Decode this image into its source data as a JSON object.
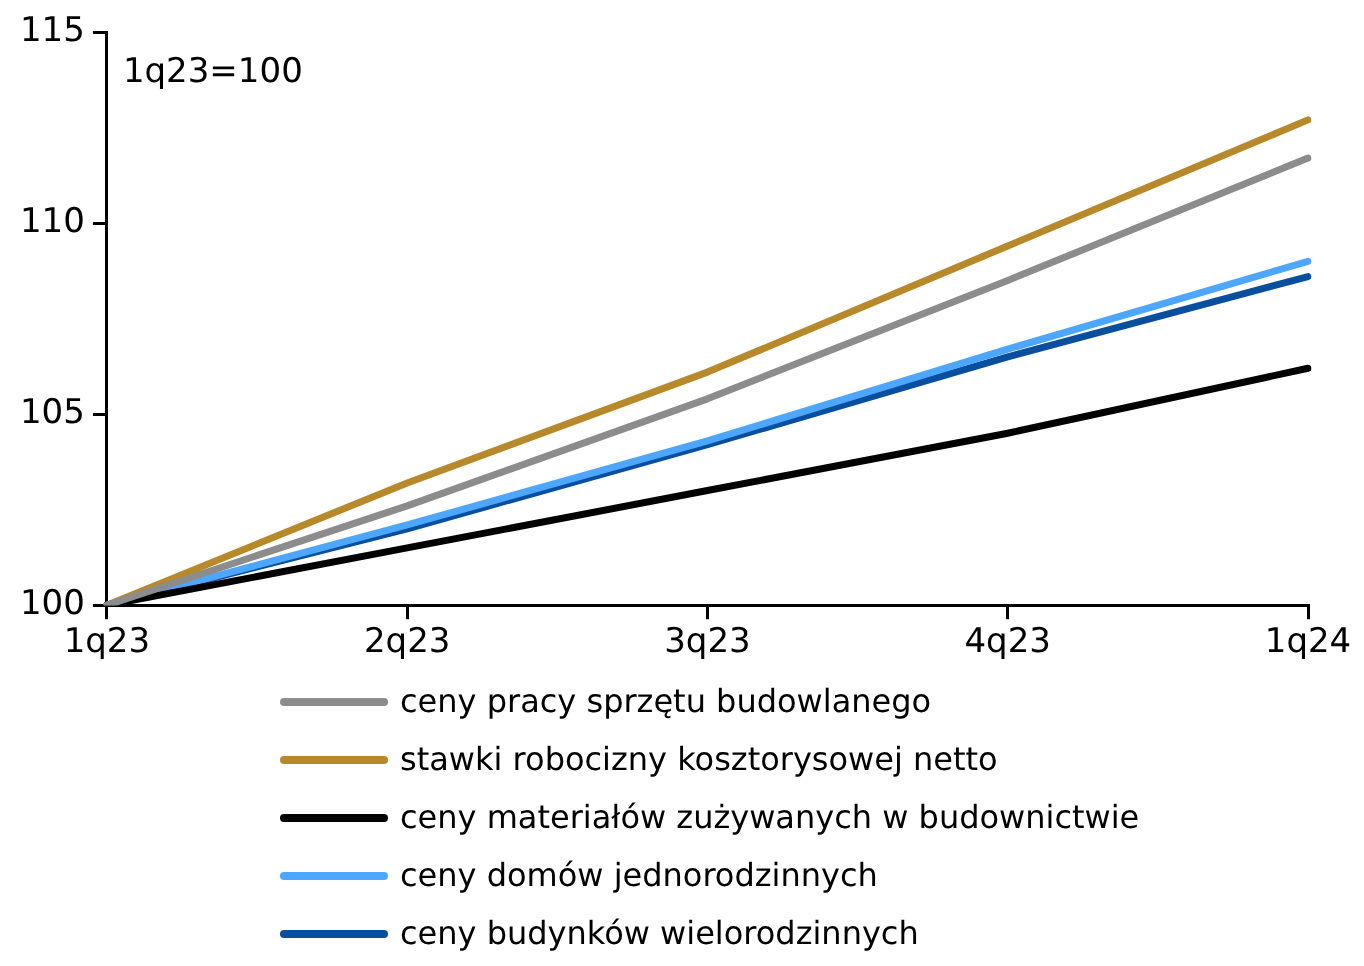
{
  "chart_data": {
    "type": "line",
    "categories": [
      "1q23",
      "2q23",
      "3q23",
      "4q23",
      "1q24"
    ],
    "series": [
      {
        "name": "ceny pracy sprzętu budowlanego",
        "color": "#8c8c8c",
        "values": [
          100,
          102.6,
          105.4,
          108.5,
          111.7
        ]
      },
      {
        "name": "stawki robocizny kosztorysowej netto",
        "color": "#b8892a",
        "values": [
          100,
          103.2,
          106.1,
          109.4,
          112.7
        ]
      },
      {
        "name": "ceny materiałów zużywanych w budownictwie",
        "color": "#000000",
        "values": [
          100,
          101.5,
          103.0,
          104.5,
          106.2
        ]
      },
      {
        "name": "ceny domów jednorodzinnych",
        "color": "#4da6ff",
        "values": [
          100,
          102.1,
          104.3,
          106.7,
          109.0
        ]
      },
      {
        "name": "ceny budynków wielorodzinnych",
        "color": "#0a4f9e",
        "values": [
          100,
          102.0,
          104.2,
          106.5,
          108.6
        ]
      }
    ],
    "ylim": [
      100,
      115
    ],
    "yticks": [
      100,
      105,
      110,
      115
    ],
    "grid": false,
    "legend": "bottom",
    "marker": "none",
    "line_style": "solid",
    "annotations": [
      "1q23=100"
    ]
  }
}
